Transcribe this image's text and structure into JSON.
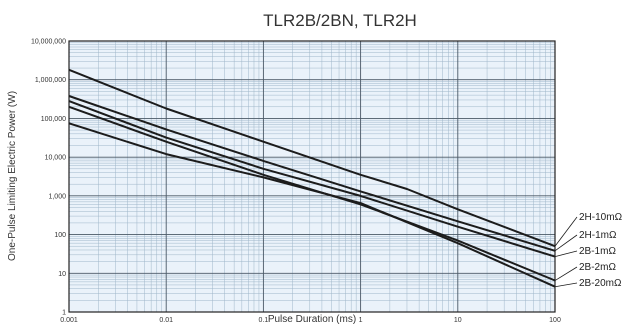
{
  "chart_data": {
    "type": "line",
    "title": "TLR2B/2BN, TLR2H",
    "xlabel": "Pulse Duration (ms)",
    "ylabel": "One-Pulse Limiting Electric Power (W)",
    "x_scale": "log",
    "y_scale": "log",
    "xlim": [
      0.001,
      100
    ],
    "ylim": [
      1,
      10000000
    ],
    "x_ticks": [
      "0.001",
      "0.01",
      "0.1",
      "1",
      "10",
      "100"
    ],
    "y_ticks": [
      "1",
      "10",
      "100",
      "1,000",
      "10,000",
      "100,000",
      "1,000,000",
      "10,000,000"
    ],
    "grid": true,
    "series": [
      {
        "name": "2H-10mΩ",
        "x": [
          0.001,
          0.01,
          0.1,
          1,
          3,
          10,
          100
        ],
        "y": [
          1800000,
          180000,
          25000,
          3500,
          1500,
          450,
          50
        ]
      },
      {
        "name": "2H-1mΩ",
        "x": [
          0.001,
          0.01,
          0.1,
          1,
          10,
          100
        ],
        "y": [
          380000,
          52000,
          8000,
          1300,
          220,
          38
        ]
      },
      {
        "name": "2B-1mΩ",
        "x": [
          0.001,
          0.01,
          0.1,
          1,
          10,
          100
        ],
        "y": [
          280000,
          32000,
          5000,
          1000,
          160,
          27
        ]
      },
      {
        "name": "2B-2mΩ",
        "x": [
          0.001,
          0.01,
          0.1,
          1,
          10,
          100
        ],
        "y": [
          200000,
          25000,
          3500,
          600,
          70,
          6.5
        ]
      },
      {
        "name": "2B-20mΩ",
        "x": [
          0.001,
          0.01,
          0.1,
          1,
          10,
          100
        ],
        "y": [
          75000,
          12000,
          3000,
          650,
          60,
          4.5
        ]
      }
    ]
  }
}
